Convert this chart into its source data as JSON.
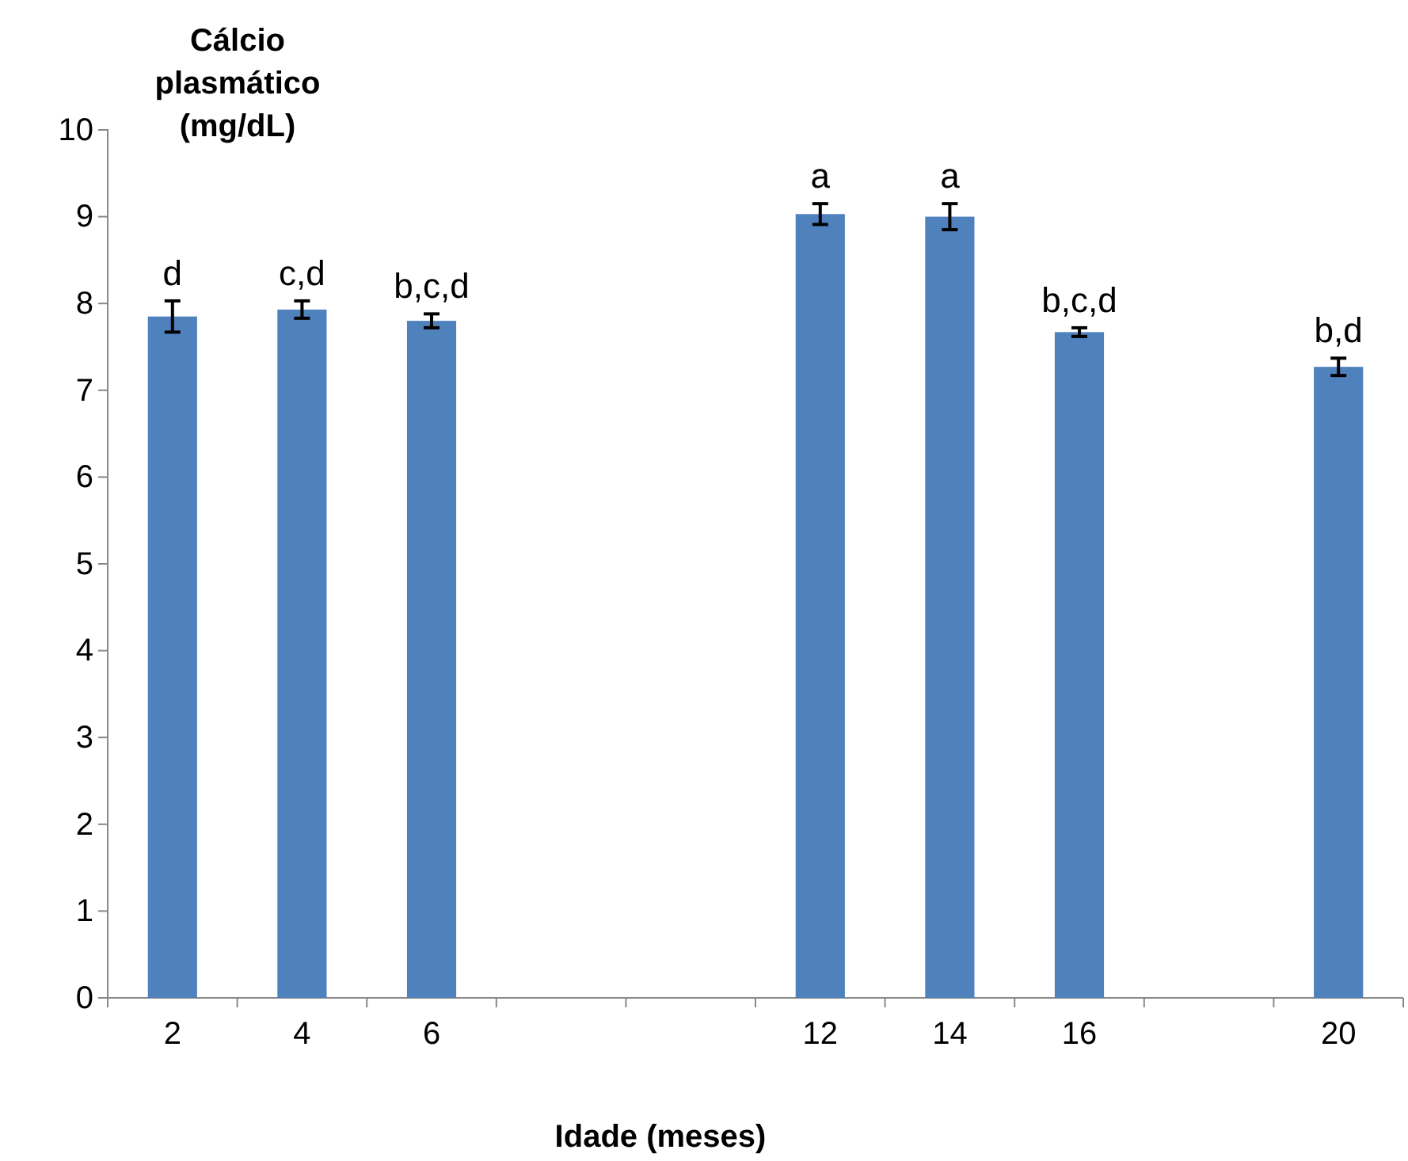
{
  "chart_data": {
    "type": "bar",
    "ylabel": "Cálcio plasmático (mg/dL)",
    "xlabel": "Idade (meses)",
    "categories": [
      "2",
      "4",
      "6",
      null,
      null,
      "12",
      "14",
      "16",
      null,
      "20"
    ],
    "values": [
      7.85,
      7.93,
      7.8,
      null,
      null,
      9.03,
      9.0,
      7.67,
      null,
      7.27
    ],
    "errors": [
      0.18,
      0.1,
      0.08,
      null,
      null,
      0.12,
      0.15,
      0.05,
      null,
      0.1
    ],
    "color": "#4f81bd",
    "ylim": [
      0,
      10
    ],
    "yticks": [
      0,
      1,
      2,
      3,
      4,
      5,
      6,
      7,
      8,
      9,
      10
    ],
    "grid": false,
    "annotations": [
      {
        "text": "d",
        "x": "2",
        "y": 8.03
      },
      {
        "text": "c,d",
        "x": "4",
        "y": 8.03
      },
      {
        "text": "b,c,d",
        "x": "6",
        "y": 7.88
      },
      {
        "text": "a",
        "x": "12",
        "y": 9.15
      },
      {
        "text": "a",
        "x": "14",
        "y": 9.15
      },
      {
        "text": "b,c,d",
        "x": "16",
        "y": 7.72
      },
      {
        "text": "b,d",
        "x": "20",
        "y": 7.37
      }
    ]
  }
}
